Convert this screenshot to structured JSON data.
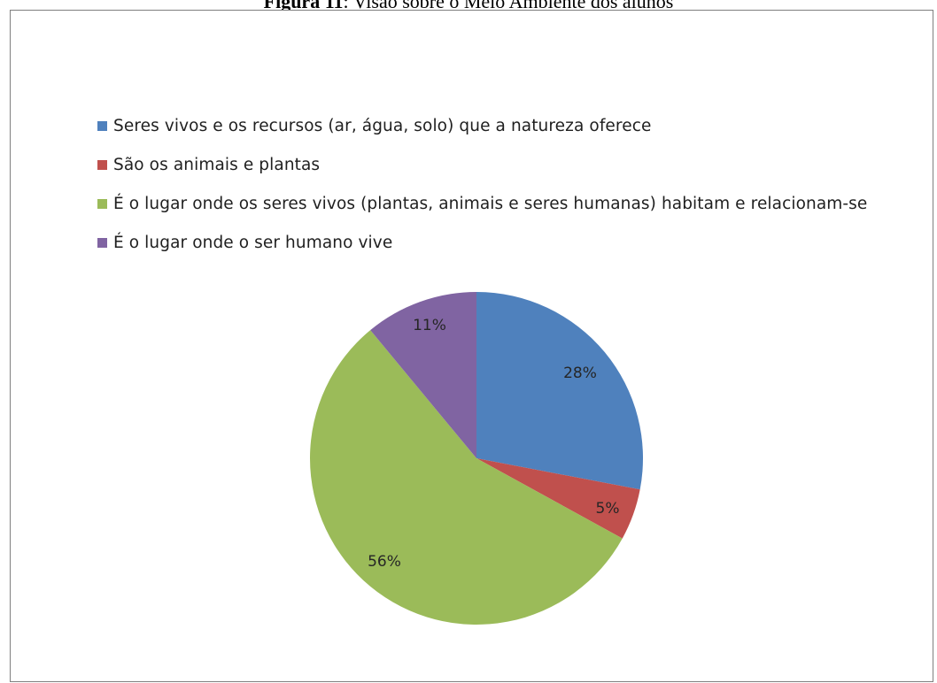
{
  "figure": {
    "title_prefix": "Figura 11",
    "title_rest": ": Visão sobre o Meio Ambiente dos alunos"
  },
  "chart_data": {
    "type": "pie",
    "legend_position": "top-left",
    "slices": [
      {
        "label": "Seres vivos e os recursos (ar, água, solo) que a natureza oferece",
        "value": 28,
        "data_label": "28%",
        "color": "#4f81bd"
      },
      {
        "label": "São os animais e plantas",
        "value": 5,
        "data_label": "5%",
        "color": "#c0504d"
      },
      {
        "label": "É o lugar onde os seres vivos (plantas, animais e seres humanas) habitam e relacionam-se",
        "value": 56,
        "data_label": "56%",
        "color": "#9bbb59"
      },
      {
        "label": "É o lugar onde o ser humano vive",
        "value": 11,
        "data_label": "11%",
        "color": "#8064a2"
      }
    ]
  }
}
